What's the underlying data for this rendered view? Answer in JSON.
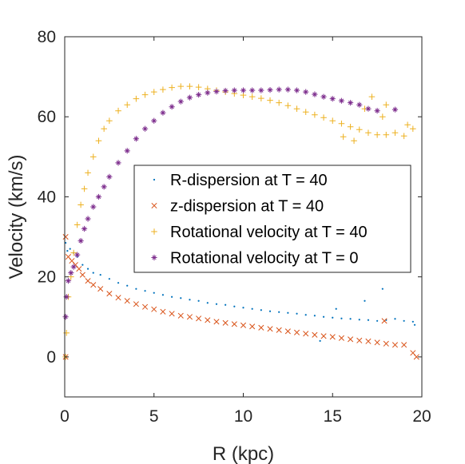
{
  "colors": {
    "r_dispersion": "#0072BD",
    "z_dispersion": "#D95319",
    "rot_t40": "#EDB120",
    "rot_t0": "#7E2F8E",
    "axis": "#262626",
    "background": "#ffffff"
  },
  "chart_data": {
    "type": "scatter",
    "xlabel": "R (kpc)",
    "ylabel": "Velocity (km/s)",
    "xlim": [
      0,
      20
    ],
    "ylim": [
      -10,
      80
    ],
    "x_ticks": [
      0,
      5,
      10,
      15,
      20
    ],
    "y_ticks": [
      0,
      20,
      40,
      60,
      80
    ],
    "x_tick_labels": [
      "0",
      "5",
      "10",
      "15",
      "20"
    ],
    "y_tick_labels": [
      "0",
      "20",
      "40",
      "60",
      "80"
    ],
    "grid": false,
    "legend_position": "right",
    "series": [
      {
        "name": "R-dispersion at T = 40",
        "marker": "dot",
        "color": "#0072BD",
        "points": [
          [
            0.05,
            28.5
          ],
          [
            0.15,
            26.5
          ],
          [
            0.3,
            27
          ],
          [
            0.5,
            26
          ],
          [
            0.7,
            25
          ],
          [
            1.0,
            23
          ],
          [
            1.3,
            22
          ],
          [
            1.6,
            21
          ],
          [
            2.0,
            20.5
          ],
          [
            2.5,
            19.5
          ],
          [
            3.0,
            18.5
          ],
          [
            3.5,
            17.8
          ],
          [
            4.0,
            17
          ],
          [
            4.5,
            16.5
          ],
          [
            5.0,
            16
          ],
          [
            5.5,
            15.5
          ],
          [
            6.0,
            15
          ],
          [
            6.5,
            14.7
          ],
          [
            7.0,
            14.3
          ],
          [
            7.5,
            14
          ],
          [
            8.0,
            13.5
          ],
          [
            8.5,
            13.2
          ],
          [
            9.0,
            13
          ],
          [
            9.5,
            12.6
          ],
          [
            10.0,
            12.3
          ],
          [
            10.5,
            12
          ],
          [
            11.0,
            11.7
          ],
          [
            11.5,
            11.4
          ],
          [
            12.0,
            11.2
          ],
          [
            12.5,
            11
          ],
          [
            13.0,
            10.8
          ],
          [
            13.5,
            10.5
          ],
          [
            14.0,
            10.3
          ],
          [
            14.5,
            10
          ],
          [
            15.0,
            9.8
          ],
          [
            15.5,
            9.6
          ],
          [
            16.0,
            9.5
          ],
          [
            16.5,
            9.3
          ],
          [
            17.0,
            9.2
          ],
          [
            17.5,
            9
          ],
          [
            18.0,
            9.2
          ],
          [
            18.5,
            9.5
          ],
          [
            19.0,
            9
          ],
          [
            19.5,
            8.8
          ],
          [
            17.8,
            17
          ],
          [
            16.8,
            14
          ],
          [
            15.2,
            12
          ],
          [
            14.3,
            4
          ],
          [
            19.6,
            8
          ]
        ]
      },
      {
        "name": "z-dispersion at T = 40",
        "marker": "x",
        "color": "#D95319",
        "points": [
          [
            0.05,
            0
          ],
          [
            0.05,
            30
          ],
          [
            0.2,
            25
          ],
          [
            0.4,
            24
          ],
          [
            0.6,
            23
          ],
          [
            0.8,
            22
          ],
          [
            1.0,
            20.5
          ],
          [
            1.3,
            19
          ],
          [
            1.6,
            18
          ],
          [
            2.0,
            17
          ],
          [
            2.5,
            15.8
          ],
          [
            3.0,
            14.8
          ],
          [
            3.5,
            14
          ],
          [
            4.0,
            13.2
          ],
          [
            4.5,
            12.5
          ],
          [
            5.0,
            11.9
          ],
          [
            5.5,
            11.3
          ],
          [
            6.0,
            10.8
          ],
          [
            6.5,
            10.3
          ],
          [
            7.0,
            10
          ],
          [
            7.5,
            9.6
          ],
          [
            8.0,
            9.2
          ],
          [
            8.5,
            8.8
          ],
          [
            9.0,
            8.5
          ],
          [
            9.5,
            8.2
          ],
          [
            10.0,
            7.9
          ],
          [
            10.5,
            7.6
          ],
          [
            11.0,
            7.3
          ],
          [
            11.5,
            7
          ],
          [
            12.0,
            6.7
          ],
          [
            12.5,
            6.4
          ],
          [
            13.0,
            6.1
          ],
          [
            13.5,
            5.8
          ],
          [
            14.0,
            5.5
          ],
          [
            14.5,
            5.2
          ],
          [
            15.0,
            5
          ],
          [
            15.5,
            4.7
          ],
          [
            16.0,
            4.4
          ],
          [
            16.5,
            4.1
          ],
          [
            17.0,
            3.9
          ],
          [
            17.5,
            3.6
          ],
          [
            18.0,
            3.3
          ],
          [
            18.5,
            3
          ],
          [
            19.0,
            3
          ],
          [
            19.5,
            1
          ],
          [
            17.9,
            9
          ],
          [
            19.7,
            0
          ]
        ]
      },
      {
        "name": "Rotational velocity at T = 40",
        "marker": "plus",
        "color": "#EDB120",
        "points": [
          [
            0.05,
            0
          ],
          [
            0.1,
            6
          ],
          [
            0.2,
            15
          ],
          [
            0.35,
            20
          ],
          [
            0.5,
            26
          ],
          [
            0.7,
            33
          ],
          [
            0.9,
            38
          ],
          [
            1.1,
            42
          ],
          [
            1.3,
            46
          ],
          [
            1.6,
            50
          ],
          [
            1.9,
            54
          ],
          [
            2.2,
            57
          ],
          [
            2.5,
            59
          ],
          [
            3.0,
            61.5
          ],
          [
            3.5,
            63
          ],
          [
            4.0,
            64.5
          ],
          [
            4.5,
            65.5
          ],
          [
            5.0,
            66.2
          ],
          [
            5.5,
            66.8
          ],
          [
            6.0,
            67.3
          ],
          [
            6.5,
            67.6
          ],
          [
            7.0,
            67.6
          ],
          [
            7.5,
            67.4
          ],
          [
            8.0,
            67
          ],
          [
            8.5,
            66.6
          ],
          [
            9.0,
            66.2
          ],
          [
            9.5,
            65.8
          ],
          [
            10.0,
            65.4
          ],
          [
            10.5,
            65
          ],
          [
            11.0,
            64.6
          ],
          [
            11.5,
            64.1
          ],
          [
            12.0,
            63.5
          ],
          [
            12.5,
            62.8
          ],
          [
            13.0,
            62
          ],
          [
            13.5,
            61.2
          ],
          [
            14.0,
            60.5
          ],
          [
            14.5,
            59.8
          ],
          [
            15.0,
            59
          ],
          [
            15.5,
            58.3
          ],
          [
            16.0,
            57.5
          ],
          [
            16.5,
            56.8
          ],
          [
            17.0,
            56
          ],
          [
            17.5,
            55.5
          ],
          [
            18.0,
            55.5
          ],
          [
            18.5,
            56
          ],
          [
            19.0,
            55.2
          ],
          [
            19.5,
            57
          ],
          [
            16.2,
            54
          ],
          [
            15.6,
            55
          ],
          [
            17.2,
            65
          ],
          [
            18.0,
            63
          ],
          [
            19.2,
            58
          ],
          [
            17.8,
            60
          ],
          [
            16.8,
            62
          ]
        ]
      },
      {
        "name": "Rotational velocity at T = 0",
        "marker": "star",
        "color": "#7E2F8E",
        "points": [
          [
            0.05,
            10
          ],
          [
            0.1,
            15
          ],
          [
            0.2,
            19
          ],
          [
            0.35,
            21
          ],
          [
            0.5,
            22.5
          ],
          [
            0.7,
            25.5
          ],
          [
            0.9,
            29
          ],
          [
            1.1,
            32
          ],
          [
            1.3,
            34.5
          ],
          [
            1.6,
            37.5
          ],
          [
            1.9,
            40
          ],
          [
            2.2,
            42.5
          ],
          [
            2.5,
            45
          ],
          [
            3.0,
            48.5
          ],
          [
            3.5,
            51.5
          ],
          [
            4.0,
            54.5
          ],
          [
            4.5,
            57
          ],
          [
            5.0,
            59
          ],
          [
            5.5,
            61
          ],
          [
            6.0,
            62.5
          ],
          [
            6.5,
            63.8
          ],
          [
            7.0,
            64.8
          ],
          [
            7.5,
            65.5
          ],
          [
            8.0,
            66
          ],
          [
            8.5,
            66.3
          ],
          [
            9.0,
            66.5
          ],
          [
            9.5,
            66.6
          ],
          [
            10.0,
            66.6
          ],
          [
            10.5,
            66.6
          ],
          [
            11.0,
            66.6
          ],
          [
            11.5,
            66.7
          ],
          [
            12.0,
            66.8
          ],
          [
            12.5,
            66.8
          ],
          [
            13.0,
            66.6
          ],
          [
            13.5,
            66.2
          ],
          [
            14.0,
            65.6
          ],
          [
            14.5,
            65
          ],
          [
            15.0,
            64.5
          ],
          [
            15.5,
            64
          ],
          [
            16.0,
            63.5
          ],
          [
            16.5,
            63
          ],
          [
            17.0,
            62
          ],
          [
            17.5,
            61.5
          ],
          [
            18.5,
            61.8
          ]
        ]
      }
    ]
  }
}
